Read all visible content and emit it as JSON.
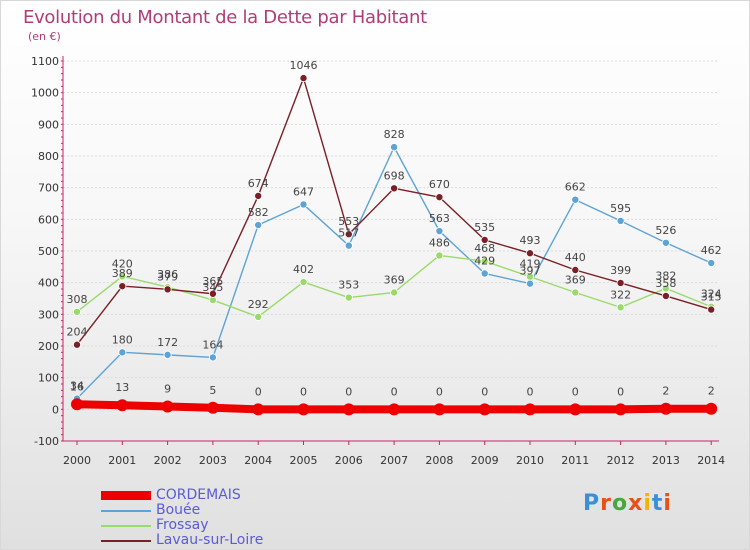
{
  "header": {
    "title": "Evolution du Montant de la Dette par Habitant",
    "subtitle": "(en €)"
  },
  "logo": {
    "text": "Proxiti",
    "colors": [
      "#3b8fd6",
      "#e8501a",
      "#49a83c",
      "#e8501a",
      "#f4b400",
      "#3b8fd6",
      "#e8501a"
    ]
  },
  "chart_data": {
    "type": "line",
    "x": [
      2000,
      2001,
      2002,
      2003,
      2004,
      2005,
      2006,
      2007,
      2008,
      2009,
      2010,
      2011,
      2012,
      2013,
      2014
    ],
    "x_tick_labels": [
      "2000",
      "2001",
      "2002",
      "2003",
      "2004",
      "2005",
      "2006",
      "2007",
      "2008",
      "2009",
      "2010",
      "2011",
      "2012",
      "2013",
      "2014"
    ],
    "ylim": [
      -100,
      1100
    ],
    "y_ticks": [
      -100,
      0,
      100,
      200,
      300,
      400,
      500,
      600,
      700,
      800,
      900,
      1000,
      1100
    ],
    "y_tick_labels": [
      "-100",
      "0",
      "100",
      "200",
      "300",
      "400",
      "500",
      "600",
      "700",
      "800",
      "900",
      "1000",
      "1100"
    ],
    "grid": "horizontal",
    "legend_position": "bottom-left",
    "series": [
      {
        "name": "CORDEMAIS",
        "color": "#ee0000",
        "bold": true,
        "values": [
          16,
          13,
          9,
          5,
          0,
          0,
          0,
          0,
          0,
          0,
          0,
          0,
          0,
          2,
          2
        ],
        "labels": [
          "16",
          "13",
          "9",
          "5",
          "0",
          "0",
          "0",
          "0",
          "0",
          "0",
          "0",
          "0",
          "0",
          "2",
          "2"
        ]
      },
      {
        "name": "Bouée",
        "color": "#5da3d6",
        "values": [
          34,
          180,
          172,
          164,
          582,
          647,
          517,
          828,
          563,
          429,
          397,
          662,
          595,
          526,
          462
        ],
        "labels": [
          "34",
          "180",
          "172",
          "164",
          "582",
          "647",
          "517",
          "828",
          "563",
          "429",
          "397",
          "662",
          "595",
          "526",
          "462"
        ]
      },
      {
        "name": "Frossay",
        "color": "#9ada6a",
        "values": [
          308,
          420,
          386,
          345,
          292,
          402,
          353,
          369,
          486,
          468,
          419,
          369,
          322,
          382,
          324
        ],
        "labels": [
          "308",
          "420",
          "386",
          "345",
          "292",
          "402",
          "353",
          "369",
          "486",
          "468",
          "419",
          "369",
          "322",
          "382",
          "324"
        ]
      },
      {
        "name": "Lavau-sur-Loire",
        "color": "#7a1f26",
        "values": [
          204,
          389,
          379,
          365,
          674,
          1046,
          553,
          698,
          670,
          535,
          493,
          440,
          399,
          358,
          315
        ],
        "labels": [
          "204",
          "389",
          "379",
          "365",
          "674",
          "1046",
          "553",
          "698",
          "670",
          "535",
          "493",
          "440",
          "399",
          "358",
          "315"
        ]
      }
    ]
  }
}
